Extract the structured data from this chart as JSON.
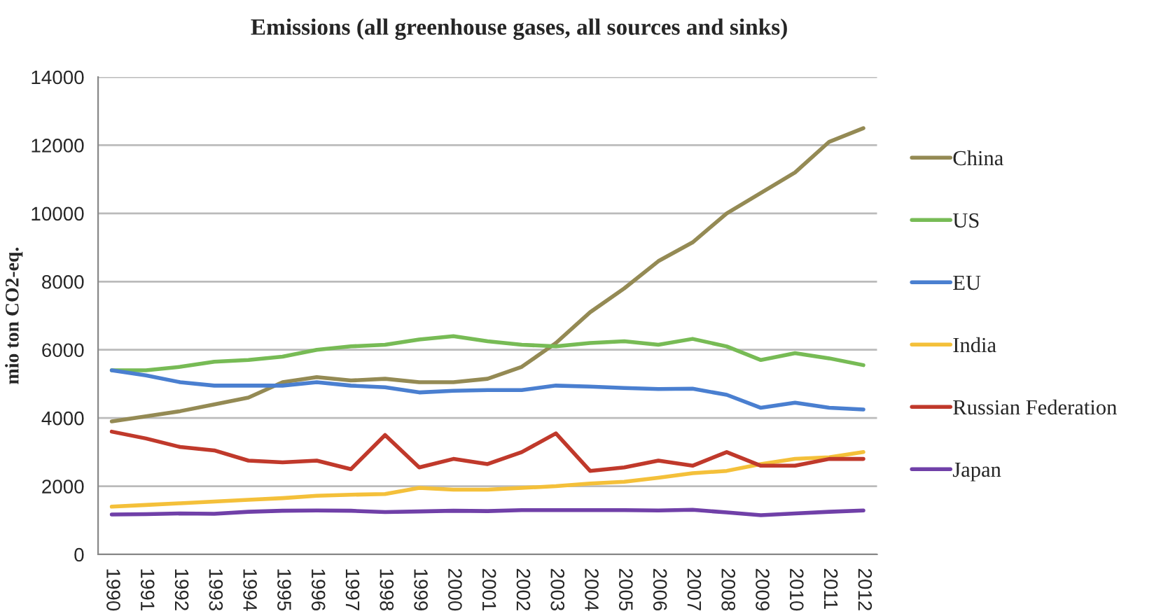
{
  "chart_data": {
    "type": "line",
    "title": "Emissions (all greenhouse gases, all sources and sinks)",
    "ylabel": "mio ton CO2-eq.",
    "categories": [
      "1990",
      "1991",
      "1992",
      "1993",
      "1994",
      "1995",
      "1996",
      "1997",
      "1998",
      "1999",
      "2000",
      "2001",
      "2002",
      "2003",
      "2004",
      "2005",
      "2006",
      "2007",
      "2008",
      "2009",
      "2010",
      "2011",
      "2012"
    ],
    "series": [
      {
        "name": "China",
        "color": "#948a54",
        "values": [
          3900,
          4050,
          4200,
          4400,
          4600,
          5050,
          5200,
          5100,
          5150,
          5050,
          5050,
          5150,
          5500,
          6200,
          7100,
          7800,
          8600,
          9150,
          10000,
          10600,
          11200,
          12100,
          12500
        ]
      },
      {
        "name": "US",
        "color": "#77bb55",
        "values": [
          5400,
          5400,
          5500,
          5650,
          5700,
          5800,
          6000,
          6100,
          6150,
          6300,
          6400,
          6250,
          6150,
          6100,
          6200,
          6250,
          6150,
          6320,
          6100,
          5700,
          5900,
          5750,
          5550
        ]
      },
      {
        "name": "EU",
        "color": "#4a7fd0",
        "values": [
          5400,
          5250,
          5050,
          4950,
          4950,
          4950,
          5050,
          4950,
          4900,
          4750,
          4800,
          4820,
          4820,
          4950,
          4920,
          4880,
          4850,
          4860,
          4680,
          4300,
          4450,
          4300,
          4250
        ]
      },
      {
        "name": "India",
        "color": "#f4c03a",
        "values": [
          1400,
          1450,
          1500,
          1550,
          1600,
          1650,
          1720,
          1750,
          1770,
          1950,
          1900,
          1900,
          1950,
          2000,
          2080,
          2130,
          2250,
          2380,
          2450,
          2650,
          2800,
          2850,
          3000
        ]
      },
      {
        "name": "Russian Federation",
        "color": "#c0392b",
        "values": [
          3600,
          3400,
          3150,
          3050,
          2750,
          2700,
          2750,
          2500,
          3500,
          2550,
          2800,
          2650,
          3000,
          3550,
          2450,
          2550,
          2750,
          2600,
          3000,
          2600,
          2600,
          2800,
          2800
        ]
      },
      {
        "name": "Japan",
        "color": "#7040a8",
        "values": [
          1170,
          1180,
          1200,
          1190,
          1250,
          1280,
          1290,
          1280,
          1240,
          1260,
          1280,
          1270,
          1300,
          1300,
          1300,
          1300,
          1290,
          1310,
          1230,
          1150,
          1200,
          1250,
          1290
        ]
      }
    ],
    "ylim": [
      0,
      14000
    ],
    "yticks": [
      0,
      2000,
      4000,
      6000,
      8000,
      10000,
      12000,
      14000
    ],
    "grid": "y",
    "legend": "right",
    "marker": "none",
    "line_style": "solid"
  }
}
